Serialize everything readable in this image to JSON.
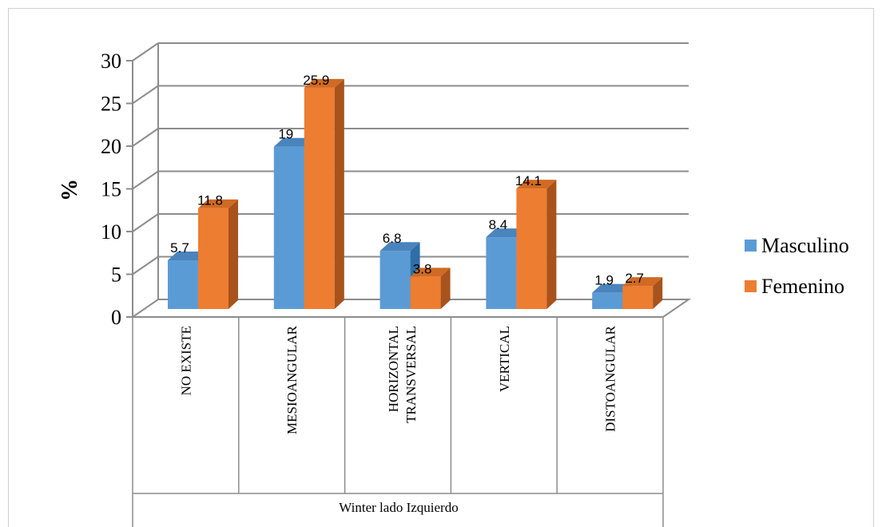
{
  "chart_data": {
    "type": "bar",
    "categories": [
      "NO EXISTE",
      "MESIOANGULAR",
      "HORIZONTAL TRANSVERSAL",
      "VERTICAL",
      "DISTOANGULAR"
    ],
    "category_lines": [
      [
        "NO EXISTE"
      ],
      [
        "MESIOANGULAR"
      ],
      [
        "HORIZONTAL",
        "TRANSVERSAL"
      ],
      [
        "VERTICAL"
      ],
      [
        "DISTOANGULAR"
      ]
    ],
    "series": [
      {
        "name": "Masculino",
        "values": [
          5.7,
          19,
          6.8,
          8.4,
          1.9
        ],
        "color": "#5b9bd5",
        "side_color": "#2e6fa8",
        "top_color": "#4a84bd"
      },
      {
        "name": "Femenino",
        "values": [
          11.8,
          25.9,
          3.8,
          14.1,
          2.7
        ],
        "color": "#ed7d31",
        "side_color": "#a8521c",
        "top_color": "#d06a24"
      }
    ],
    "xlabel": "Winter lado Izquierdo",
    "ylabel": "%",
    "ylim": [
      0,
      30
    ],
    "yticks": [
      0,
      5,
      10,
      15,
      20,
      25,
      30
    ],
    "grid": true,
    "legend_position": "right"
  }
}
